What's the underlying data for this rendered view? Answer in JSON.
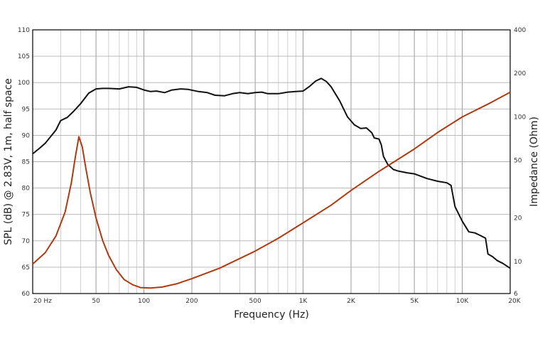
{
  "chart_data": {
    "type": "line",
    "xlabel": "Frequency (Hz)",
    "ylabel_left": "SPL (dB) @ 2.83V, 1m, half space",
    "ylabel_right": "Impedance (Ohm)",
    "x_scale": "log",
    "xlim": [
      20,
      20000
    ],
    "ylim_left": [
      60,
      110
    ],
    "ylim_right": [
      6,
      400
    ],
    "y_right_scale": "log",
    "grid": true,
    "x_ticks": [
      {
        "value": 20,
        "label": "20  Hz"
      },
      {
        "value": 50,
        "label": "50"
      },
      {
        "value": 100,
        "label": "100"
      },
      {
        "value": 200,
        "label": "200"
      },
      {
        "value": 500,
        "label": "500"
      },
      {
        "value": 1000,
        "label": "1K"
      },
      {
        "value": 2000,
        "label": "2K"
      },
      {
        "value": 5000,
        "label": "5K"
      },
      {
        "value": 10000,
        "label": "10K"
      },
      {
        "value": 20000,
        "label": "20K"
      }
    ],
    "y_left_ticks": [
      "60",
      "65",
      "70",
      "75",
      "80",
      "85",
      "90",
      "95",
      "100",
      "105",
      "110"
    ],
    "y_right_ticks": [
      {
        "value": 6,
        "label": "6"
      },
      {
        "value": 10,
        "label": "10"
      },
      {
        "value": 20,
        "label": "20"
      },
      {
        "value": 50,
        "label": "50"
      },
      {
        "value": 100,
        "label": "100"
      },
      {
        "value": 200,
        "label": "200"
      },
      {
        "value": 400,
        "label": "400"
      }
    ],
    "series": [
      {
        "axis": "left",
        "color": "#111111",
        "points": [
          [
            20,
            86.5
          ],
          [
            22,
            87.5
          ],
          [
            24,
            88.5
          ],
          [
            26,
            89.8
          ],
          [
            28,
            91
          ],
          [
            30,
            92.8
          ],
          [
            33,
            93.4
          ],
          [
            36,
            94.5
          ],
          [
            40,
            96
          ],
          [
            45,
            98
          ],
          [
            50,
            98.8
          ],
          [
            55,
            98.9
          ],
          [
            60,
            98.9
          ],
          [
            70,
            98.8
          ],
          [
            80,
            99.2
          ],
          [
            90,
            99.1
          ],
          [
            100,
            98.6
          ],
          [
            110,
            98.3
          ],
          [
            120,
            98.4
          ],
          [
            135,
            98.1
          ],
          [
            150,
            98.6
          ],
          [
            170,
            98.8
          ],
          [
            190,
            98.7
          ],
          [
            220,
            98.3
          ],
          [
            250,
            98.1
          ],
          [
            280,
            97.6
          ],
          [
            320,
            97.5
          ],
          [
            360,
            97.9
          ],
          [
            400,
            98.1
          ],
          [
            450,
            97.9
          ],
          [
            500,
            98.1
          ],
          [
            550,
            98.2
          ],
          [
            600,
            97.9
          ],
          [
            700,
            97.9
          ],
          [
            800,
            98.2
          ],
          [
            900,
            98.3
          ],
          [
            1000,
            98.4
          ],
          [
            1100,
            99.3
          ],
          [
            1200,
            100.3
          ],
          [
            1300,
            100.8
          ],
          [
            1400,
            100.2
          ],
          [
            1500,
            99.2
          ],
          [
            1700,
            96.5
          ],
          [
            1900,
            93.5
          ],
          [
            2100,
            92
          ],
          [
            2300,
            91.3
          ],
          [
            2500,
            91.4
          ],
          [
            2700,
            90.5
          ],
          [
            2800,
            89.5
          ],
          [
            3000,
            89.3
          ],
          [
            3100,
            88.2
          ],
          [
            3200,
            86
          ],
          [
            3400,
            84.5
          ],
          [
            3700,
            83.5
          ],
          [
            4000,
            83.2
          ],
          [
            4500,
            82.9
          ],
          [
            5000,
            82.7
          ],
          [
            6000,
            81.8
          ],
          [
            7000,
            81.3
          ],
          [
            8000,
            81
          ],
          [
            8500,
            80.5
          ],
          [
            9000,
            76.5
          ],
          [
            10000,
            73.7
          ],
          [
            11000,
            71.7
          ],
          [
            12000,
            71.5
          ],
          [
            13000,
            71
          ],
          [
            14000,
            70.5
          ],
          [
            14500,
            67.5
          ],
          [
            15500,
            67
          ],
          [
            16500,
            66.3
          ],
          [
            18000,
            65.7
          ],
          [
            20000,
            64.8
          ]
        ]
      },
      {
        "axis": "right",
        "color": "#b03a10",
        "points": [
          [
            20,
            9.6
          ],
          [
            24,
            11.5
          ],
          [
            28,
            15
          ],
          [
            32,
            22
          ],
          [
            35,
            35
          ],
          [
            37,
            52
          ],
          [
            39,
            73
          ],
          [
            41,
            62
          ],
          [
            43,
            45
          ],
          [
            46,
            30
          ],
          [
            50,
            20
          ],
          [
            55,
            14
          ],
          [
            60,
            11
          ],
          [
            67,
            8.8
          ],
          [
            75,
            7.5
          ],
          [
            85,
            6.9
          ],
          [
            95,
            6.6
          ],
          [
            110,
            6.55
          ],
          [
            130,
            6.65
          ],
          [
            160,
            7
          ],
          [
            200,
            7.6
          ],
          [
            300,
            9
          ],
          [
            500,
            11.8
          ],
          [
            700,
            14.5
          ],
          [
            1000,
            18.5
          ],
          [
            1500,
            24.5
          ],
          [
            2000,
            31
          ],
          [
            3000,
            42
          ],
          [
            5000,
            60
          ],
          [
            7000,
            78
          ],
          [
            10000,
            100
          ],
          [
            15000,
            125
          ],
          [
            20000,
            148
          ]
        ]
      }
    ]
  }
}
